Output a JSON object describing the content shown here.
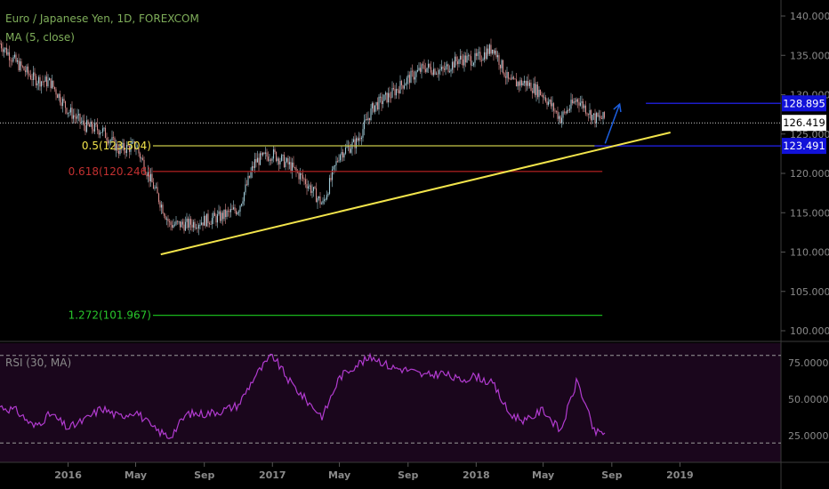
{
  "header": {
    "symbol_line": "Euro / Japanese Yen, 1D, FOREXCOM",
    "ma_line": "MA (5, close)"
  },
  "rsi_panel": {
    "label": "RSI (30, MA)"
  },
  "colors": {
    "background": "#000000",
    "text": "#8a8a8a",
    "header_text": "#7fae5a",
    "candle_up": "#9fc9d6",
    "candle_down": "#d98c8c",
    "trendline": "#f2e44b",
    "fib_05": "#c9c94a",
    "fib_0618": "#a01e1e",
    "fib_1272": "#19b51c",
    "level_line": "#1c1cc9",
    "level_box": "#1212d9",
    "price_box": "#ffffff",
    "rsi_line": "#b23bd0",
    "rsi_fill": "#1a061c"
  },
  "chart_data": [
    {
      "type": "line",
      "title": "Euro / Japanese Yen, 1D, FOREXCOM",
      "x_tick_labels": [
        "2016",
        "May",
        "Sep",
        "2017",
        "May",
        "Sep",
        "2018",
        "May",
        "Sep",
        "2019"
      ],
      "y_tick_labels": [
        "140.000",
        "135.000",
        "130.000",
        "125.000",
        "120.000",
        "115.000",
        "110.000",
        "105.000",
        "100.000"
      ],
      "ylim": [
        99,
        141
      ],
      "series": [
        {
          "name": "",
          "x": [
            "2015-09-01",
            "2015-10-01",
            "2015-11-01",
            "2015-12-01",
            "2016-01-01",
            "2016-02-01",
            "2016-03-01",
            "2016-04-01",
            "2016-05-01",
            "2016-06-01",
            "2016-07-01",
            "2016-08-01",
            "2016-09-01",
            "2016-10-01",
            "2016-11-01",
            "2016-12-01",
            "2017-01-01",
            "2017-02-01",
            "2017-03-01",
            "2017-04-01",
            "2017-05-01",
            "2017-06-01",
            "2017-07-01",
            "2017-08-01",
            "2017-09-01",
            "2017-10-01",
            "2017-11-01",
            "2017-12-01",
            "2018-01-01",
            "2018-02-01",
            "2018-03-01",
            "2018-04-01",
            "2018-05-01",
            "2018-06-01",
            "2018-07-01",
            "2018-08-01"
          ],
          "y": [
            136.5,
            134.0,
            132.0,
            131.5,
            128.0,
            126.0,
            125.5,
            123.0,
            123.5,
            118.5,
            113.5,
            113.5,
            114.0,
            114.5,
            115.5,
            121.5,
            122.5,
            121.0,
            119.0,
            116.0,
            122.5,
            124.0,
            128.5,
            130.0,
            132.0,
            133.5,
            133.0,
            134.5,
            134.5,
            136.0,
            131.5,
            131.5,
            130.0,
            127.0,
            129.5,
            127.0
          ]
        }
      ],
      "annotations": {
        "fib_05": {
          "label": "0.5(123.504)",
          "value": 123.504
        },
        "fib_0618": {
          "label": "0.618(120.246)",
          "value": 120.246
        },
        "fib_1272": {
          "label": "1.272(101.967)",
          "value": 101.967
        },
        "level_high": {
          "label": "128.895",
          "value": 128.895
        },
        "level_low": {
          "label": "123.491",
          "value": 123.491
        },
        "last_price": {
          "label": "126.419",
          "value": 126.419
        },
        "trendline": {
          "from": {
            "x": "2016-06-15",
            "y": 109.7
          },
          "to": {
            "x": "2018-12-15",
            "y": 125.2
          }
        },
        "projection_arrow": {
          "from": {
            "x": "2018-08-20",
            "y": 123.8
          },
          "to": {
            "x": "2018-09-15",
            "y": 128.8
          }
        }
      }
    },
    {
      "type": "line",
      "title": "RSI (30, MA)",
      "y_tick_labels": [
        "75.0000",
        "50.0000",
        "25.0000"
      ],
      "ylim": [
        15,
        85
      ],
      "reference_levels": [
        80,
        20
      ],
      "series": [
        {
          "name": "RSI (30, MA)",
          "x": [
            "2015-09-01",
            "2015-10-01",
            "2015-11-01",
            "2015-12-01",
            "2016-01-01",
            "2016-02-01",
            "2016-03-01",
            "2016-04-01",
            "2016-05-01",
            "2016-06-01",
            "2016-07-01",
            "2016-08-01",
            "2016-09-01",
            "2016-10-01",
            "2016-11-01",
            "2016-12-01",
            "2017-01-01",
            "2017-02-01",
            "2017-03-01",
            "2017-04-01",
            "2017-05-01",
            "2017-06-01",
            "2017-07-01",
            "2017-08-01",
            "2017-09-01",
            "2017-10-01",
            "2017-11-01",
            "2017-12-01",
            "2018-01-01",
            "2018-02-01",
            "2018-03-01",
            "2018-04-01",
            "2018-05-01",
            "2018-06-01",
            "2018-07-01",
            "2018-08-01"
          ],
          "y": [
            45,
            42,
            31,
            40,
            30,
            36,
            44,
            38,
            42,
            30,
            24,
            40,
            40,
            42,
            46,
            66,
            80,
            62,
            50,
            38,
            65,
            74,
            79,
            72,
            70,
            66,
            68,
            63,
            66,
            60,
            40,
            35,
            43,
            28,
            63,
            27
          ]
        }
      ]
    }
  ]
}
